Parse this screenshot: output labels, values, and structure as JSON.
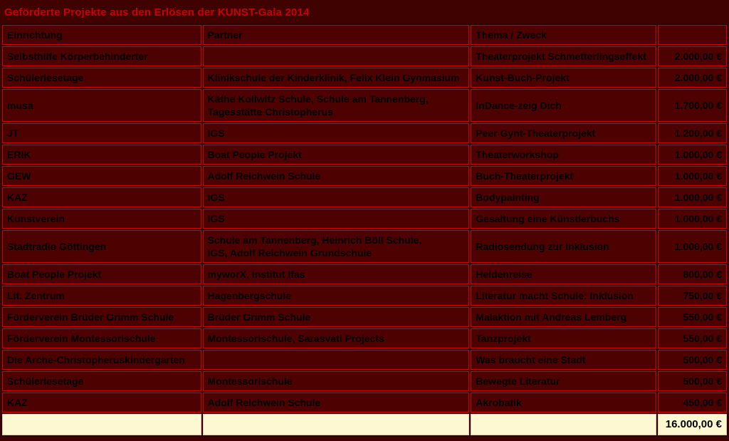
{
  "title": "Geförderte Projekte aus den Erlösen der KUNST-Gala 2014",
  "colors": {
    "page_background": "#400101",
    "cell_background": "#4E0101",
    "grid_border": "#D00000",
    "title_text": "#C80202",
    "cell_text": "#000000",
    "total_row_background": "#FDF8D2",
    "total_row_border": "#EEC9A2"
  },
  "table": {
    "headers": [
      "Einrichtung",
      "Partner",
      "Thema / Zweck",
      ""
    ],
    "rows": [
      {
        "einrichtung": "Selbsthilfe Körperbehinderter",
        "partner": "",
        "thema": "Theaterprojekt Schmetterlingseffekt",
        "betrag": "2.000,00 €"
      },
      {
        "einrichtung": "Schülerlesetage",
        "partner": "Klinikschule der Kinderklinik, Felix Klein Gynmasium",
        "thema": "Kunst-Buch-Projekt",
        "betrag": "2.000,00 €"
      },
      {
        "einrichtung": "musa",
        "partner": "Käthe Kollwitz Schule, Schule am Tannenberg,\nTagesstätte Christopherus",
        "thema": "InDance-zeig Dich",
        "betrag": "1.700,00 €"
      },
      {
        "einrichtung": "JT",
        "partner": "IGS",
        "thema": "Peer Gynt-Theaterprojekt",
        "betrag": "1.200,00 €"
      },
      {
        "einrichtung": "ERIK",
        "partner": "Boat People Projekt",
        "thema": "Theaterworkshop",
        "betrag": "1.000,00 €"
      },
      {
        "einrichtung": "GEW",
        "partner": "Adolf Reichwein Schule",
        "thema": "Buch-Theaterprojekt",
        "betrag": "1.000,00 €"
      },
      {
        "einrichtung": "KAZ",
        "partner": "IGS",
        "thema": "Bodypainting",
        "betrag": "1.000,00 €"
      },
      {
        "einrichtung": "Kunstverein",
        "partner": "IGS",
        "thema": "Gesaltung eine Künstlerbuchs",
        "betrag": "1.000,00 €"
      },
      {
        "einrichtung": "Stadtradio Göttingen",
        "partner": "Schule am Tannenberg, Heinrich Böll Schule,\n IGS, Adolf Reichwein Grundschule",
        "thema": "Radiosendung zur Inklusion",
        "betrag": "1.000,00 €"
      },
      {
        "einrichtung": "Boat People Projekt",
        "partner": "myworX, Institut Ifas",
        "thema": "Heldenreise",
        "betrag": "800,00 €"
      },
      {
        "einrichtung": "Lit. Zentrum",
        "partner": "Hagenbergschule",
        "thema": "Literatur macht Schule: Inklusion",
        "betrag": "750,00 €"
      },
      {
        "einrichtung": "Förderverein Brüder Grimm Schule",
        "partner": "Brüder Grimm Schule",
        "thema": "Malaktion mit Andreas Lemberg",
        "betrag": "550,00 €"
      },
      {
        "einrichtung": "Förderverein Montessorischule",
        "partner": "Montessorischule, Sarasvati Projects",
        "thema": "Tanzprojekt",
        "betrag": "550,00 €"
      },
      {
        "einrichtung": "Die Arche-Christopheruskindergarten",
        "partner": "",
        "thema": "Was braucht eine Stadt",
        "betrag": "500,00 €"
      },
      {
        "einrichtung": "Schülerlesetage",
        "partner": "Montessorischule",
        "thema": "Bewegte Literatur",
        "betrag": "500,00 €"
      },
      {
        "einrichtung": "KAZ",
        "partner": "Adolf Reichwein Schule",
        "thema": "Akrobatik",
        "betrag": "450,00 €"
      }
    ],
    "total": "16.000,00 €"
  }
}
